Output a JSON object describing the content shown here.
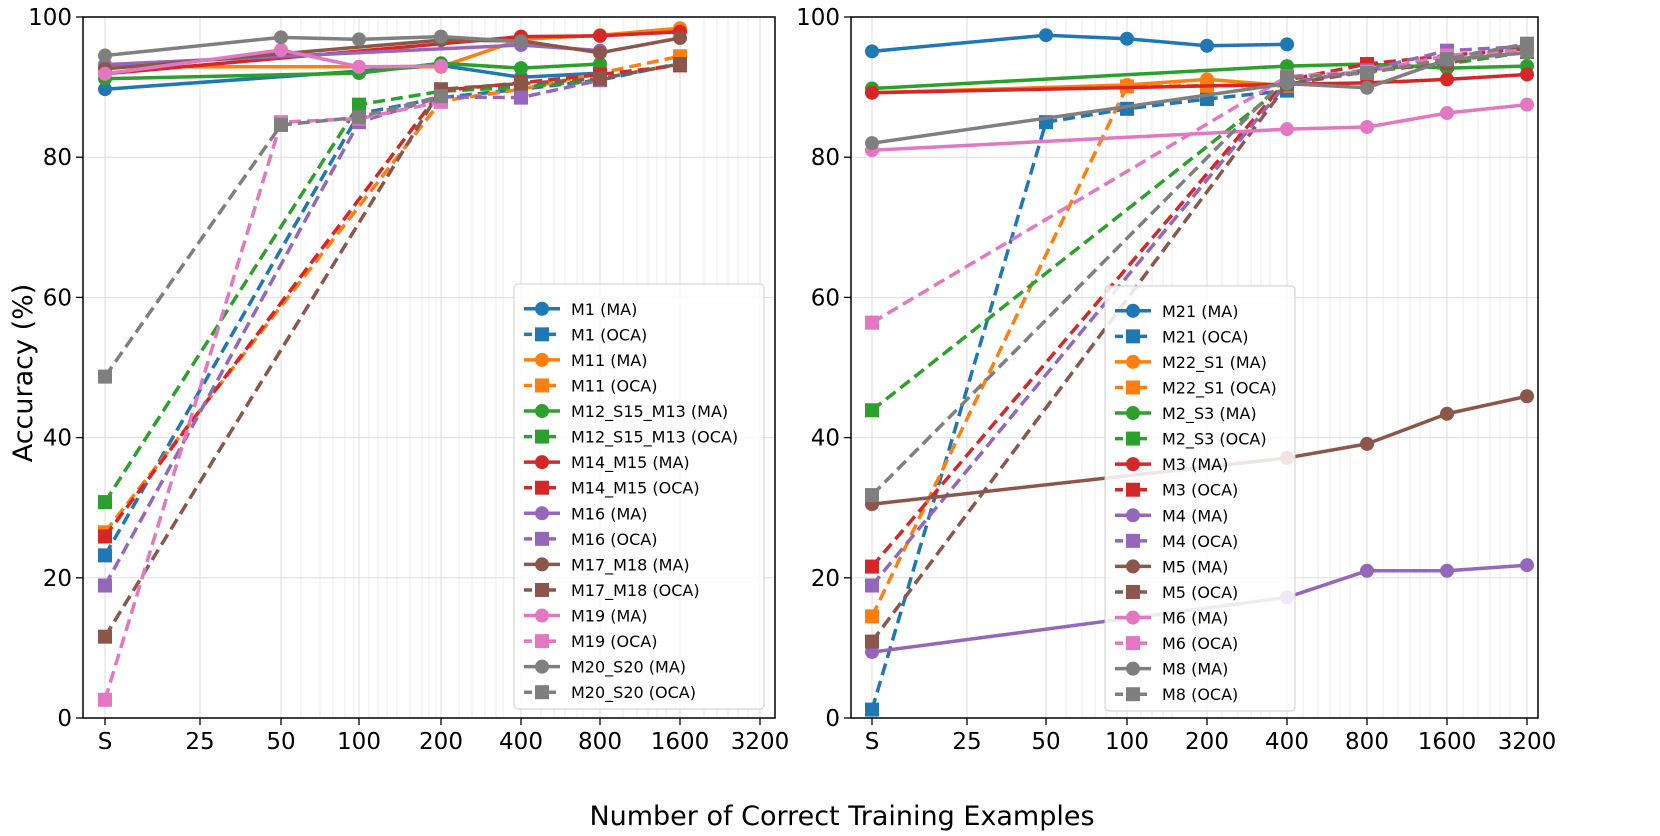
{
  "figure": {
    "ylabel": "Accuracy (%)",
    "xlabel": "Number of Correct Training Examples"
  },
  "chart_data": [
    {
      "type": "line",
      "title": "",
      "xlabel": "Number of Correct Training Examples",
      "ylabel": "Accuracy (%)",
      "ylim": [
        0,
        100
      ],
      "yticks": [
        0,
        20,
        40,
        60,
        80,
        100
      ],
      "x_scale": "log2",
      "categories": [
        "S",
        "25",
        "50",
        "100",
        "200",
        "400",
        "800",
        "1600",
        "3200"
      ],
      "grid": true,
      "legend_position": "lower-right",
      "series": [
        {
          "name": "M1 (MA)",
          "color": "#1f77b4",
          "style": "solid",
          "marker": "circle",
          "x": [
            "S",
            "200",
            "400",
            "800"
          ],
          "values": [
            89.7,
            93.1,
            91.4,
            92.0
          ]
        },
        {
          "name": "M1 (OCA)",
          "color": "#1f77b4",
          "style": "dashed",
          "marker": "square",
          "x": [
            "S",
            "100",
            "200",
            "400",
            "800",
            "1600"
          ],
          "values": [
            23.2,
            86.2,
            88.5,
            89.7,
            91.0,
            93.4
          ]
        },
        {
          "name": "M11 (MA)",
          "color": "#ff7f0e",
          "style": "solid",
          "marker": "circle",
          "x": [
            "S",
            "200",
            "400",
            "800",
            "1600"
          ],
          "values": [
            92.9,
            92.9,
            96.8,
            97.4,
            98.4
          ]
        },
        {
          "name": "M11 (OCA)",
          "color": "#ff7f0e",
          "style": "dashed",
          "marker": "square",
          "x": [
            "S",
            "200",
            "400",
            "800",
            "1600"
          ],
          "values": [
            26.5,
            88.0,
            89.7,
            92.0,
            94.4
          ]
        },
        {
          "name": "M12_S15_M13 (MA)",
          "color": "#2ca02c",
          "style": "solid",
          "marker": "circle",
          "x": [
            "S",
            "100",
            "200",
            "400",
            "800"
          ],
          "values": [
            91.2,
            92.0,
            93.4,
            92.7,
            93.3
          ]
        },
        {
          "name": "M12_S15_M13 (OCA)",
          "color": "#2ca02c",
          "style": "dashed",
          "marker": "square",
          "x": [
            "S",
            "100",
            "200",
            "400",
            "800"
          ],
          "values": [
            30.8,
            87.5,
            89.4,
            90.0,
            91.0
          ]
        },
        {
          "name": "M14_M15 (MA)",
          "color": "#d62728",
          "style": "solid",
          "marker": "circle",
          "x": [
            "S",
            "400",
            "800",
            "1600"
          ],
          "values": [
            91.9,
            97.2,
            97.3,
            97.9
          ]
        },
        {
          "name": "M14_M15 (OCA)",
          "color": "#d62728",
          "style": "dashed",
          "marker": "square",
          "x": [
            "S",
            "200",
            "400",
            "800",
            "1600"
          ],
          "values": [
            25.9,
            89.5,
            90.6,
            91.8,
            93.1
          ]
        },
        {
          "name": "M16 (MA)",
          "color": "#9467bd",
          "style": "solid",
          "marker": "circle",
          "x": [
            "S",
            "400",
            "800"
          ],
          "values": [
            93.2,
            96.0,
            95.2
          ]
        },
        {
          "name": "M16 (OCA)",
          "color": "#9467bd",
          "style": "dashed",
          "marker": "square",
          "x": [
            "S",
            "100",
            "200",
            "400",
            "800"
          ],
          "values": [
            18.9,
            85.0,
            88.6,
            88.5,
            91.0
          ]
        },
        {
          "name": "M17_M18 (MA)",
          "color": "#8c564b",
          "style": "solid",
          "marker": "circle",
          "x": [
            "S",
            "200",
            "400",
            "800",
            "1600"
          ],
          "values": [
            92.6,
            96.7,
            96.6,
            94.9,
            97.0
          ]
        },
        {
          "name": "M17_M18 (OCA)",
          "color": "#8c564b",
          "style": "dashed",
          "marker": "square",
          "x": [
            "S",
            "200",
            "400",
            "800",
            "1600"
          ],
          "values": [
            11.6,
            89.7,
            90.5,
            91.2,
            93.3
          ]
        },
        {
          "name": "M19 (MA)",
          "color": "#e377c2",
          "style": "solid",
          "marker": "circle",
          "x": [
            "S",
            "50",
            "100",
            "200"
          ],
          "values": [
            91.9,
            95.3,
            92.9,
            93.0
          ]
        },
        {
          "name": "M19 (OCA)",
          "color": "#e377c2",
          "style": "dashed",
          "marker": "square",
          "x": [
            "S",
            "50",
            "100",
            "200"
          ],
          "values": [
            2.6,
            85.0,
            85.5,
            87.9
          ]
        },
        {
          "name": "M20_S20 (MA)",
          "color": "#7f7f7f",
          "style": "solid",
          "marker": "circle",
          "x": [
            "S",
            "50",
            "100",
            "200",
            "400"
          ],
          "values": [
            94.5,
            97.1,
            96.8,
            97.2,
            96.5
          ]
        },
        {
          "name": "M20_S20 (OCA)",
          "color": "#7f7f7f",
          "style": "dashed",
          "marker": "square",
          "x": [
            "S",
            "50",
            "100",
            "200"
          ],
          "values": [
            48.7,
            84.6,
            85.7,
            88.7
          ]
        }
      ]
    },
    {
      "type": "line",
      "title": "",
      "xlabel": "Number of Correct Training Examples",
      "ylabel": "",
      "ylim": [
        0,
        100
      ],
      "yticks": [
        0,
        20,
        40,
        60,
        80,
        100
      ],
      "x_scale": "log2",
      "categories": [
        "S",
        "25",
        "50",
        "100",
        "200",
        "400",
        "800",
        "1600",
        "3200"
      ],
      "grid": true,
      "legend_position": "lower-center",
      "series": [
        {
          "name": "M21 (MA)",
          "color": "#1f77b4",
          "style": "solid",
          "marker": "circle",
          "x": [
            "S",
            "50",
            "100",
            "200",
            "400"
          ],
          "values": [
            95.1,
            97.4,
            96.9,
            95.9,
            96.1
          ]
        },
        {
          "name": "M21 (OCA)",
          "color": "#1f77b4",
          "style": "dashed",
          "marker": "square",
          "x": [
            "S",
            "50",
            "100",
            "200",
            "400"
          ],
          "values": [
            1.2,
            85.0,
            86.9,
            88.3,
            89.5
          ]
        },
        {
          "name": "M22_S1 (MA)",
          "color": "#ff7f0e",
          "style": "solid",
          "marker": "circle",
          "x": [
            "S",
            "100",
            "200",
            "400"
          ],
          "values": [
            89.2,
            90.3,
            91.1,
            90.2
          ]
        },
        {
          "name": "M22_S1 (OCA)",
          "color": "#ff7f0e",
          "style": "dashed",
          "marker": "square",
          "x": [
            "S",
            "100",
            "200",
            "400"
          ],
          "values": [
            14.5,
            90.1,
            90.2,
            90.2
          ]
        },
        {
          "name": "M2_S3 (MA)",
          "color": "#2ca02c",
          "style": "solid",
          "marker": "circle",
          "x": [
            "S",
            "400",
            "800",
            "1600",
            "3200"
          ],
          "values": [
            89.8,
            93.0,
            93.3,
            92.7,
            93.0
          ]
        },
        {
          "name": "M2_S3 (OCA)",
          "color": "#2ca02c",
          "style": "dashed",
          "marker": "square",
          "x": [
            "S",
            "400",
            "800",
            "1600",
            "3200"
          ],
          "values": [
            43.9,
            90.5,
            92.5,
            93.3,
            95.0
          ]
        },
        {
          "name": "M3 (MA)",
          "color": "#d62728",
          "style": "solid",
          "marker": "circle",
          "x": [
            "S",
            "400",
            "800",
            "1600",
            "3200"
          ],
          "values": [
            89.2,
            90.4,
            90.6,
            91.1,
            91.8
          ]
        },
        {
          "name": "M3 (OCA)",
          "color": "#d62728",
          "style": "dashed",
          "marker": "square",
          "x": [
            "S",
            "400",
            "800",
            "1600",
            "3200"
          ],
          "values": [
            21.6,
            91.0,
            93.3,
            94.5,
            95.5
          ]
        },
        {
          "name": "M4 (MA)",
          "color": "#9467bd",
          "style": "solid",
          "marker": "circle",
          "x": [
            "S",
            "400",
            "800",
            "1600",
            "3200"
          ],
          "values": [
            9.4,
            17.2,
            21.0,
            21.0,
            21.8
          ]
        },
        {
          "name": "M4 (OCA)",
          "color": "#9467bd",
          "style": "dashed",
          "marker": "square",
          "x": [
            "S",
            "400",
            "800",
            "1600",
            "3200"
          ],
          "values": [
            18.9,
            90.6,
            92.4,
            95.2,
            95.8
          ]
        },
        {
          "name": "M5 (MA)",
          "color": "#8c564b",
          "style": "solid",
          "marker": "circle",
          "x": [
            "S",
            "400",
            "800",
            "1600",
            "3200"
          ],
          "values": [
            30.5,
            37.1,
            39.1,
            43.4,
            45.9
          ]
        },
        {
          "name": "M5 (OCA)",
          "color": "#8c564b",
          "style": "dashed",
          "marker": "square",
          "x": [
            "S",
            "400",
            "800",
            "1600",
            "3200"
          ],
          "values": [
            10.9,
            90.4,
            92.2,
            93.4,
            95.7
          ]
        },
        {
          "name": "M6 (MA)",
          "color": "#e377c2",
          "style": "solid",
          "marker": "circle",
          "x": [
            "S",
            "400",
            "800",
            "1600",
            "3200"
          ],
          "values": [
            81.0,
            84.0,
            84.3,
            86.3,
            87.5
          ]
        },
        {
          "name": "M6 (OCA)",
          "color": "#e377c2",
          "style": "dashed",
          "marker": "square",
          "x": [
            "S",
            "400",
            "800",
            "1600",
            "3200"
          ],
          "values": [
            56.4,
            91.5,
            92.2,
            94.5,
            95.3
          ]
        },
        {
          "name": "M8 (MA)",
          "color": "#7f7f7f",
          "style": "solid",
          "marker": "circle",
          "x": [
            "S",
            "400",
            "800",
            "1600",
            "3200"
          ],
          "values": [
            82.0,
            90.5,
            89.9,
            93.9,
            94.9
          ]
        },
        {
          "name": "M8 (OCA)",
          "color": "#7f7f7f",
          "style": "dashed",
          "marker": "square",
          "x": [
            "S",
            "400",
            "800",
            "1600",
            "3200"
          ],
          "values": [
            31.8,
            91.4,
            92.0,
            94.0,
            96.2
          ]
        }
      ]
    }
  ]
}
